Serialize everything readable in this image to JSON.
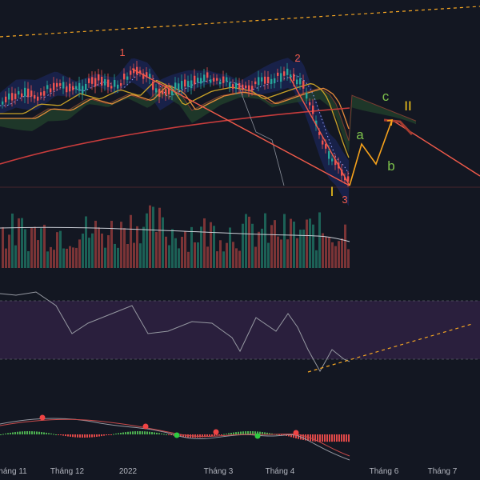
{
  "chart_data": {
    "type": "line",
    "title": "",
    "x_axis": {
      "labels": [
        "háng 11",
        "Tháng 12",
        "2022",
        "Tháng 3",
        "Tháng 4",
        "Tháng 6",
        "Tháng 7"
      ]
    },
    "wave_labels": {
      "impulse": [
        "1",
        "2",
        "3"
      ],
      "major": [
        "I",
        "II"
      ],
      "correction": [
        "a",
        "b",
        "c"
      ]
    },
    "panels": [
      "price",
      "volume",
      "rsi",
      "macd"
    ],
    "colors": {
      "background": "#131722",
      "up_candle": "#26a69a",
      "down_candle": "#ef5350",
      "trendline": "#f05a4a",
      "forecast": "#f7a21b",
      "wave_green": "#7cc04b",
      "wave_yellow": "#f7c81b",
      "wave_red": "#f05a4a",
      "dashed_orange": "#f5a623",
      "rsi_band": "#2a1f3d"
    },
    "grid": false
  }
}
